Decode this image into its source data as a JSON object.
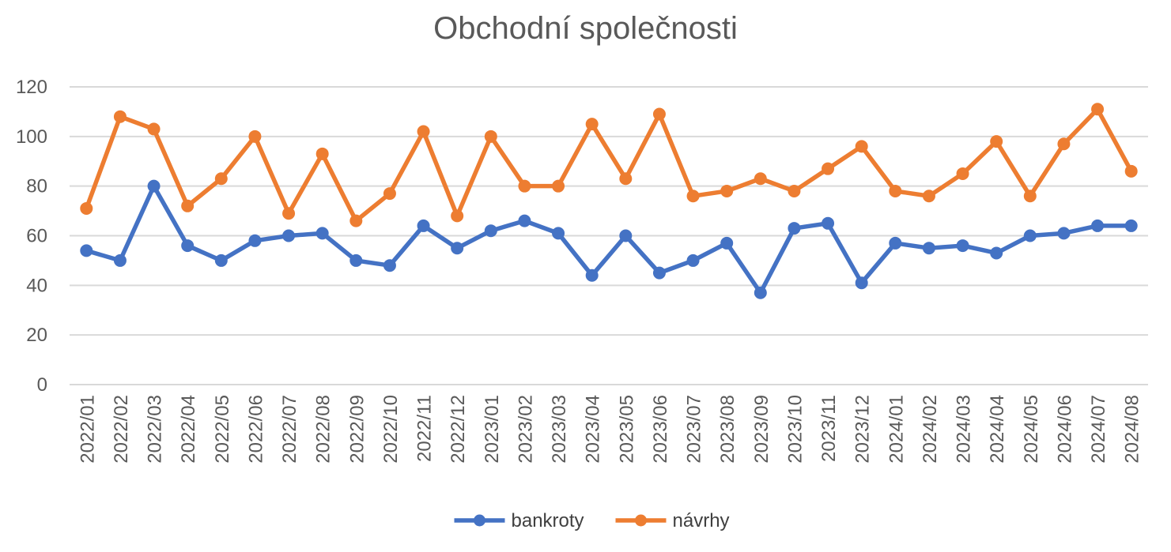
{
  "chart_data": {
    "type": "line",
    "title": "Obchodní společnosti",
    "xlabel": "",
    "ylabel": "",
    "ylim": [
      0,
      120
    ],
    "yticks": [
      "0",
      "20",
      "40",
      "60",
      "80",
      "100",
      "120"
    ],
    "grid": true,
    "legend_position": "bottom",
    "categories": [
      "2022/01",
      "2022/02",
      "2022/03",
      "2022/04",
      "2022/05",
      "2022/06",
      "2022/07",
      "2022/08",
      "2022/09",
      "2022/10",
      "2022/11",
      "2022/12",
      "2023/01",
      "2023/02",
      "2023/03",
      "2023/04",
      "2023/05",
      "2023/06",
      "2023/07",
      "2023/08",
      "2023/09",
      "2023/10",
      "2023/11",
      "2023/12",
      "2024/01",
      "2024/02",
      "2024/03",
      "2024/04",
      "2024/05",
      "2024/06",
      "2024/07",
      "2024/08"
    ],
    "series": [
      {
        "name": "bankroty",
        "color": "#4472C4",
        "values": [
          54,
          50,
          80,
          56,
          50,
          58,
          60,
          61,
          50,
          48,
          64,
          55,
          62,
          66,
          61,
          44,
          60,
          45,
          50,
          57,
          37,
          63,
          65,
          41,
          57,
          55,
          56,
          53,
          60,
          61,
          64,
          64
        ]
      },
      {
        "name": "návrhy",
        "color": "#ED7D31",
        "values": [
          71,
          108,
          103,
          72,
          83,
          100,
          69,
          93,
          66,
          77,
          102,
          68,
          100,
          80,
          80,
          105,
          83,
          109,
          76,
          78,
          83,
          78,
          87,
          96,
          78,
          76,
          85,
          98,
          76,
          97,
          111,
          86
        ]
      }
    ]
  }
}
